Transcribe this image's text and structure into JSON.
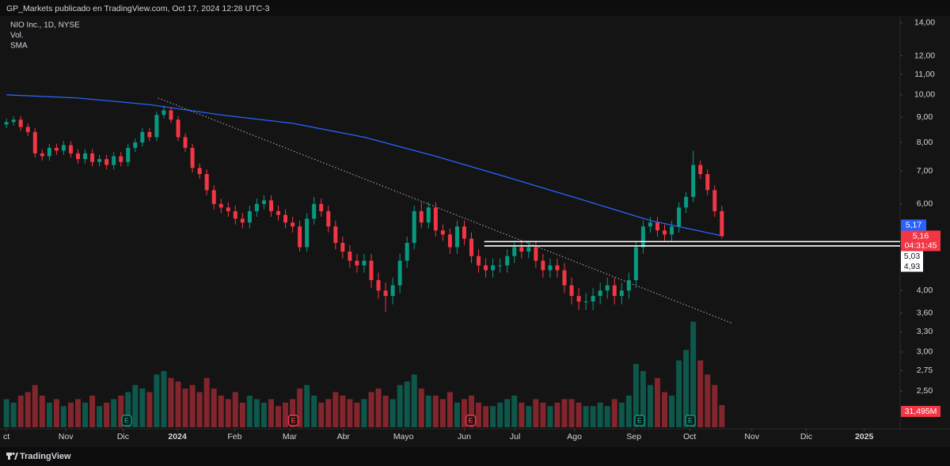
{
  "header": "GP_Markets publicado en TradingView.com, Oct 17, 2024 12:28 UTC-3",
  "footer": "TradingView",
  "chart_data": {
    "type": "candlestick",
    "title": "NIO Inc., 1D, NYSE",
    "indicators": [
      "Vol.",
      "SMA"
    ],
    "log": true,
    "grid": false,
    "up_color": "#089981",
    "down_color": "#f23645",
    "xlim": [
      -0.9,
      124.7
    ],
    "ylim": [
      2.11,
      14.47
    ],
    "yticks": [
      {
        "value": 14,
        "label": "14,00"
      },
      {
        "value": 12,
        "label": "12,00"
      },
      {
        "value": 11,
        "label": "11,00"
      },
      {
        "value": 10,
        "label": "10,00"
      },
      {
        "value": 9,
        "label": "9,00"
      },
      {
        "value": 8,
        "label": "8,00"
      },
      {
        "value": 7,
        "label": "7,00"
      },
      {
        "value": 6,
        "label": "6,00"
      },
      {
        "value": 4,
        "label": "4,00"
      },
      {
        "value": 3.6,
        "label": "3,60"
      },
      {
        "value": 3.3,
        "label": "3,30"
      },
      {
        "value": 3,
        "label": "3,00"
      },
      {
        "value": 2.75,
        "label": "2,75"
      },
      {
        "value": 2.5,
        "label": "2,50"
      }
    ],
    "xticks": [
      {
        "value": 0,
        "label": "ct"
      },
      {
        "value": 8.3,
        "label": "Nov"
      },
      {
        "value": 16.3,
        "label": "Dic"
      },
      {
        "value": 23.9,
        "label": "2024"
      },
      {
        "value": 31.9,
        "label": "Feb"
      },
      {
        "value": 39.6,
        "label": "Mar"
      },
      {
        "value": 47.1,
        "label": "Abr"
      },
      {
        "value": 55.5,
        "label": "Mayo"
      },
      {
        "value": 64.0,
        "label": "Jun"
      },
      {
        "value": 71.1,
        "label": "Jul"
      },
      {
        "value": 79.4,
        "label": "Ago"
      },
      {
        "value": 87.7,
        "label": "Sep"
      },
      {
        "value": 95.5,
        "label": "Oct"
      },
      {
        "value": 104.2,
        "label": "Nov"
      },
      {
        "value": 111.8,
        "label": "Dic"
      },
      {
        "value": 119.9,
        "label": "2025"
      }
    ],
    "candles": {
      "open": [
        8.7,
        8.8,
        8.9,
        8.6,
        8.4,
        7.6,
        7.5,
        7.8,
        7.7,
        7.9,
        7.6,
        7.4,
        7.6,
        7.3,
        7.4,
        7.2,
        7.5,
        7.3,
        7.8,
        8.0,
        8.4,
        8.2,
        9.1,
        9.3,
        8.9,
        8.2,
        7.8,
        7.1,
        6.9,
        6.4,
        6.0,
        5.9,
        5.8,
        5.6,
        5.5,
        5.8,
        6.0,
        6.1,
        5.8,
        5.7,
        5.5,
        5.4,
        4.9,
        5.6,
        6.0,
        5.8,
        5.4,
        5.0,
        4.8,
        4.6,
        4.5,
        4.6,
        4.2,
        4.0,
        3.9,
        4.1,
        4.6,
        5.0,
        5.8,
        5.5,
        5.9,
        5.3,
        5.2,
        4.9,
        5.4,
        5.1,
        4.7,
        4.5,
        4.4,
        4.5,
        4.5,
        4.7,
        4.9,
        4.8,
        4.9,
        4.6,
        4.4,
        4.5,
        4.4,
        4.1,
        3.9,
        3.8,
        3.8,
        3.9,
        4.0,
        4.1,
        3.9,
        4.0,
        4.2,
        4.9,
        5.4,
        5.5,
        5.3,
        5.2,
        5.4,
        5.9,
        6.2,
        7.2,
        6.9,
        6.4,
        5.8
      ],
      "high": [
        8.95,
        9.05,
        9.05,
        8.75,
        8.55,
        7.75,
        7.95,
        7.95,
        8.05,
        8.05,
        7.75,
        7.75,
        7.75,
        7.55,
        7.55,
        7.65,
        7.65,
        7.95,
        8.15,
        8.55,
        8.55,
        9.25,
        9.5,
        9.45,
        9.05,
        8.35,
        7.95,
        7.25,
        7.05,
        6.55,
        6.15,
        6.05,
        5.95,
        5.75,
        5.95,
        6.15,
        6.25,
        6.25,
        5.95,
        5.85,
        5.65,
        5.55,
        5.75,
        6.2,
        6.15,
        5.95,
        5.55,
        5.15,
        4.95,
        4.75,
        4.75,
        4.75,
        4.35,
        4.15,
        4.25,
        4.75,
        5.15,
        5.95,
        6.05,
        6.05,
        6.05,
        5.45,
        5.35,
        5.55,
        5.55,
        5.25,
        4.85,
        4.65,
        4.65,
        4.65,
        4.85,
        5.05,
        5.05,
        5.05,
        5.05,
        4.75,
        4.65,
        4.65,
        4.55,
        4.25,
        4.05,
        3.95,
        4.05,
        4.15,
        4.25,
        4.25,
        4.15,
        4.35,
        5.05,
        5.55,
        5.65,
        5.65,
        5.45,
        5.55,
        6.05,
        6.35,
        7.7,
        7.35,
        7.05,
        6.55,
        5.95
      ],
      "low": [
        8.55,
        8.65,
        8.45,
        8.25,
        7.45,
        7.35,
        7.35,
        7.55,
        7.55,
        7.45,
        7.25,
        7.25,
        7.15,
        7.15,
        7.05,
        7.05,
        7.15,
        7.15,
        7.65,
        7.85,
        8.05,
        8.05,
        8.95,
        8.75,
        8.05,
        7.65,
        6.95,
        6.75,
        6.25,
        5.85,
        5.75,
        5.65,
        5.45,
        5.35,
        5.35,
        5.65,
        5.85,
        5.65,
        5.55,
        5.35,
        5.25,
        4.8,
        4.8,
        5.45,
        5.65,
        5.25,
        4.85,
        4.65,
        4.45,
        4.35,
        4.35,
        4.05,
        3.85,
        3.62,
        3.75,
        3.95,
        4.45,
        4.85,
        5.35,
        5.35,
        5.15,
        5.05,
        4.75,
        4.75,
        4.95,
        4.55,
        4.35,
        4.25,
        4.25,
        4.35,
        4.35,
        4.55,
        4.65,
        4.65,
        4.45,
        4.25,
        4.25,
        4.25,
        3.95,
        3.75,
        3.65,
        3.65,
        3.65,
        3.75,
        3.85,
        3.75,
        3.75,
        3.85,
        4.05,
        4.75,
        5.25,
        5.15,
        5.05,
        5.05,
        5.25,
        5.75,
        6.05,
        6.75,
        6.25,
        5.65,
        5.1
      ],
      "close": [
        8.8,
        8.9,
        8.6,
        8.4,
        7.6,
        7.5,
        7.8,
        7.7,
        7.9,
        7.6,
        7.4,
        7.6,
        7.3,
        7.4,
        7.2,
        7.5,
        7.3,
        7.8,
        8.0,
        8.4,
        8.2,
        9.1,
        9.3,
        8.9,
        8.2,
        7.8,
        7.1,
        6.9,
        6.4,
        6.0,
        5.9,
        5.8,
        5.6,
        5.5,
        5.8,
        6.0,
        6.1,
        5.8,
        5.7,
        5.5,
        5.4,
        4.9,
        5.6,
        6.0,
        5.8,
        5.4,
        5.0,
        4.8,
        4.6,
        4.5,
        4.6,
        4.2,
        4.0,
        3.9,
        4.1,
        4.6,
        5.0,
        5.8,
        5.5,
        5.9,
        5.3,
        5.2,
        4.9,
        5.4,
        5.1,
        4.7,
        4.5,
        4.4,
        4.5,
        4.5,
        4.7,
        4.9,
        4.8,
        4.9,
        4.6,
        4.4,
        4.5,
        4.4,
        4.1,
        3.9,
        3.8,
        3.8,
        3.9,
        4.0,
        4.1,
        3.9,
        4.0,
        4.2,
        4.9,
        5.4,
        5.5,
        5.3,
        5.2,
        5.4,
        5.9,
        6.2,
        7.2,
        6.9,
        6.4,
        5.8,
        5.16
      ]
    },
    "volume": {
      "values": [
        40,
        35,
        45,
        50,
        60,
        45,
        35,
        40,
        30,
        35,
        40,
        35,
        45,
        30,
        35,
        40,
        45,
        50,
        60,
        55,
        50,
        75,
        80,
        70,
        65,
        55,
        60,
        50,
        70,
        55,
        45,
        40,
        50,
        35,
        45,
        40,
        35,
        40,
        30,
        35,
        40,
        55,
        60,
        45,
        35,
        40,
        50,
        45,
        40,
        35,
        40,
        50,
        55,
        45,
        40,
        60,
        65,
        75,
        55,
        45,
        45,
        40,
        50,
        35,
        40,
        45,
        35,
        30,
        30,
        35,
        40,
        45,
        35,
        30,
        40,
        35,
        30,
        35,
        40,
        40,
        35,
        30,
        30,
        35,
        30,
        40,
        35,
        45,
        90,
        80,
        60,
        70,
        50,
        45,
        95,
        110,
        150,
        95,
        75,
        60,
        31.495
      ],
      "ylim": [
        0,
        180
      ],
      "last_label": "31,495M"
    },
    "sma": {
      "color": "#2962ff",
      "x": [
        0,
        10,
        20,
        30,
        40,
        50,
        60,
        70,
        80,
        90,
        100
      ],
      "values": [
        10.0,
        9.85,
        9.55,
        9.1,
        8.75,
        8.2,
        7.5,
        6.8,
        6.15,
        5.55,
        5.17
      ]
    },
    "trendline": {
      "x": [
        21.2,
        101.5
      ],
      "values": [
        9.85,
        3.43
      ]
    },
    "levels": {
      "start": 66.8,
      "items": [
        {
          "value": 5.03,
          "label": "5,03"
        },
        {
          "value": 4.93,
          "label": "4,93"
        }
      ]
    },
    "price_labels": [
      {
        "value": 5.17,
        "label": "5,17",
        "color": "#2962ff"
      },
      {
        "value": 5.16,
        "label": "5,16",
        "color": "#f23645",
        "countdown": "04:31:45"
      }
    ],
    "earnings": {
      "label": "E",
      "items": [
        {
          "x": 16.8,
          "color": "#089981"
        },
        {
          "x": 40.1,
          "color": "#f23645"
        },
        {
          "x": 64.9,
          "color": "#f23645"
        },
        {
          "x": 88.5,
          "color": "#089981"
        },
        {
          "x": 95.6,
          "color": "#089981"
        }
      ]
    }
  }
}
